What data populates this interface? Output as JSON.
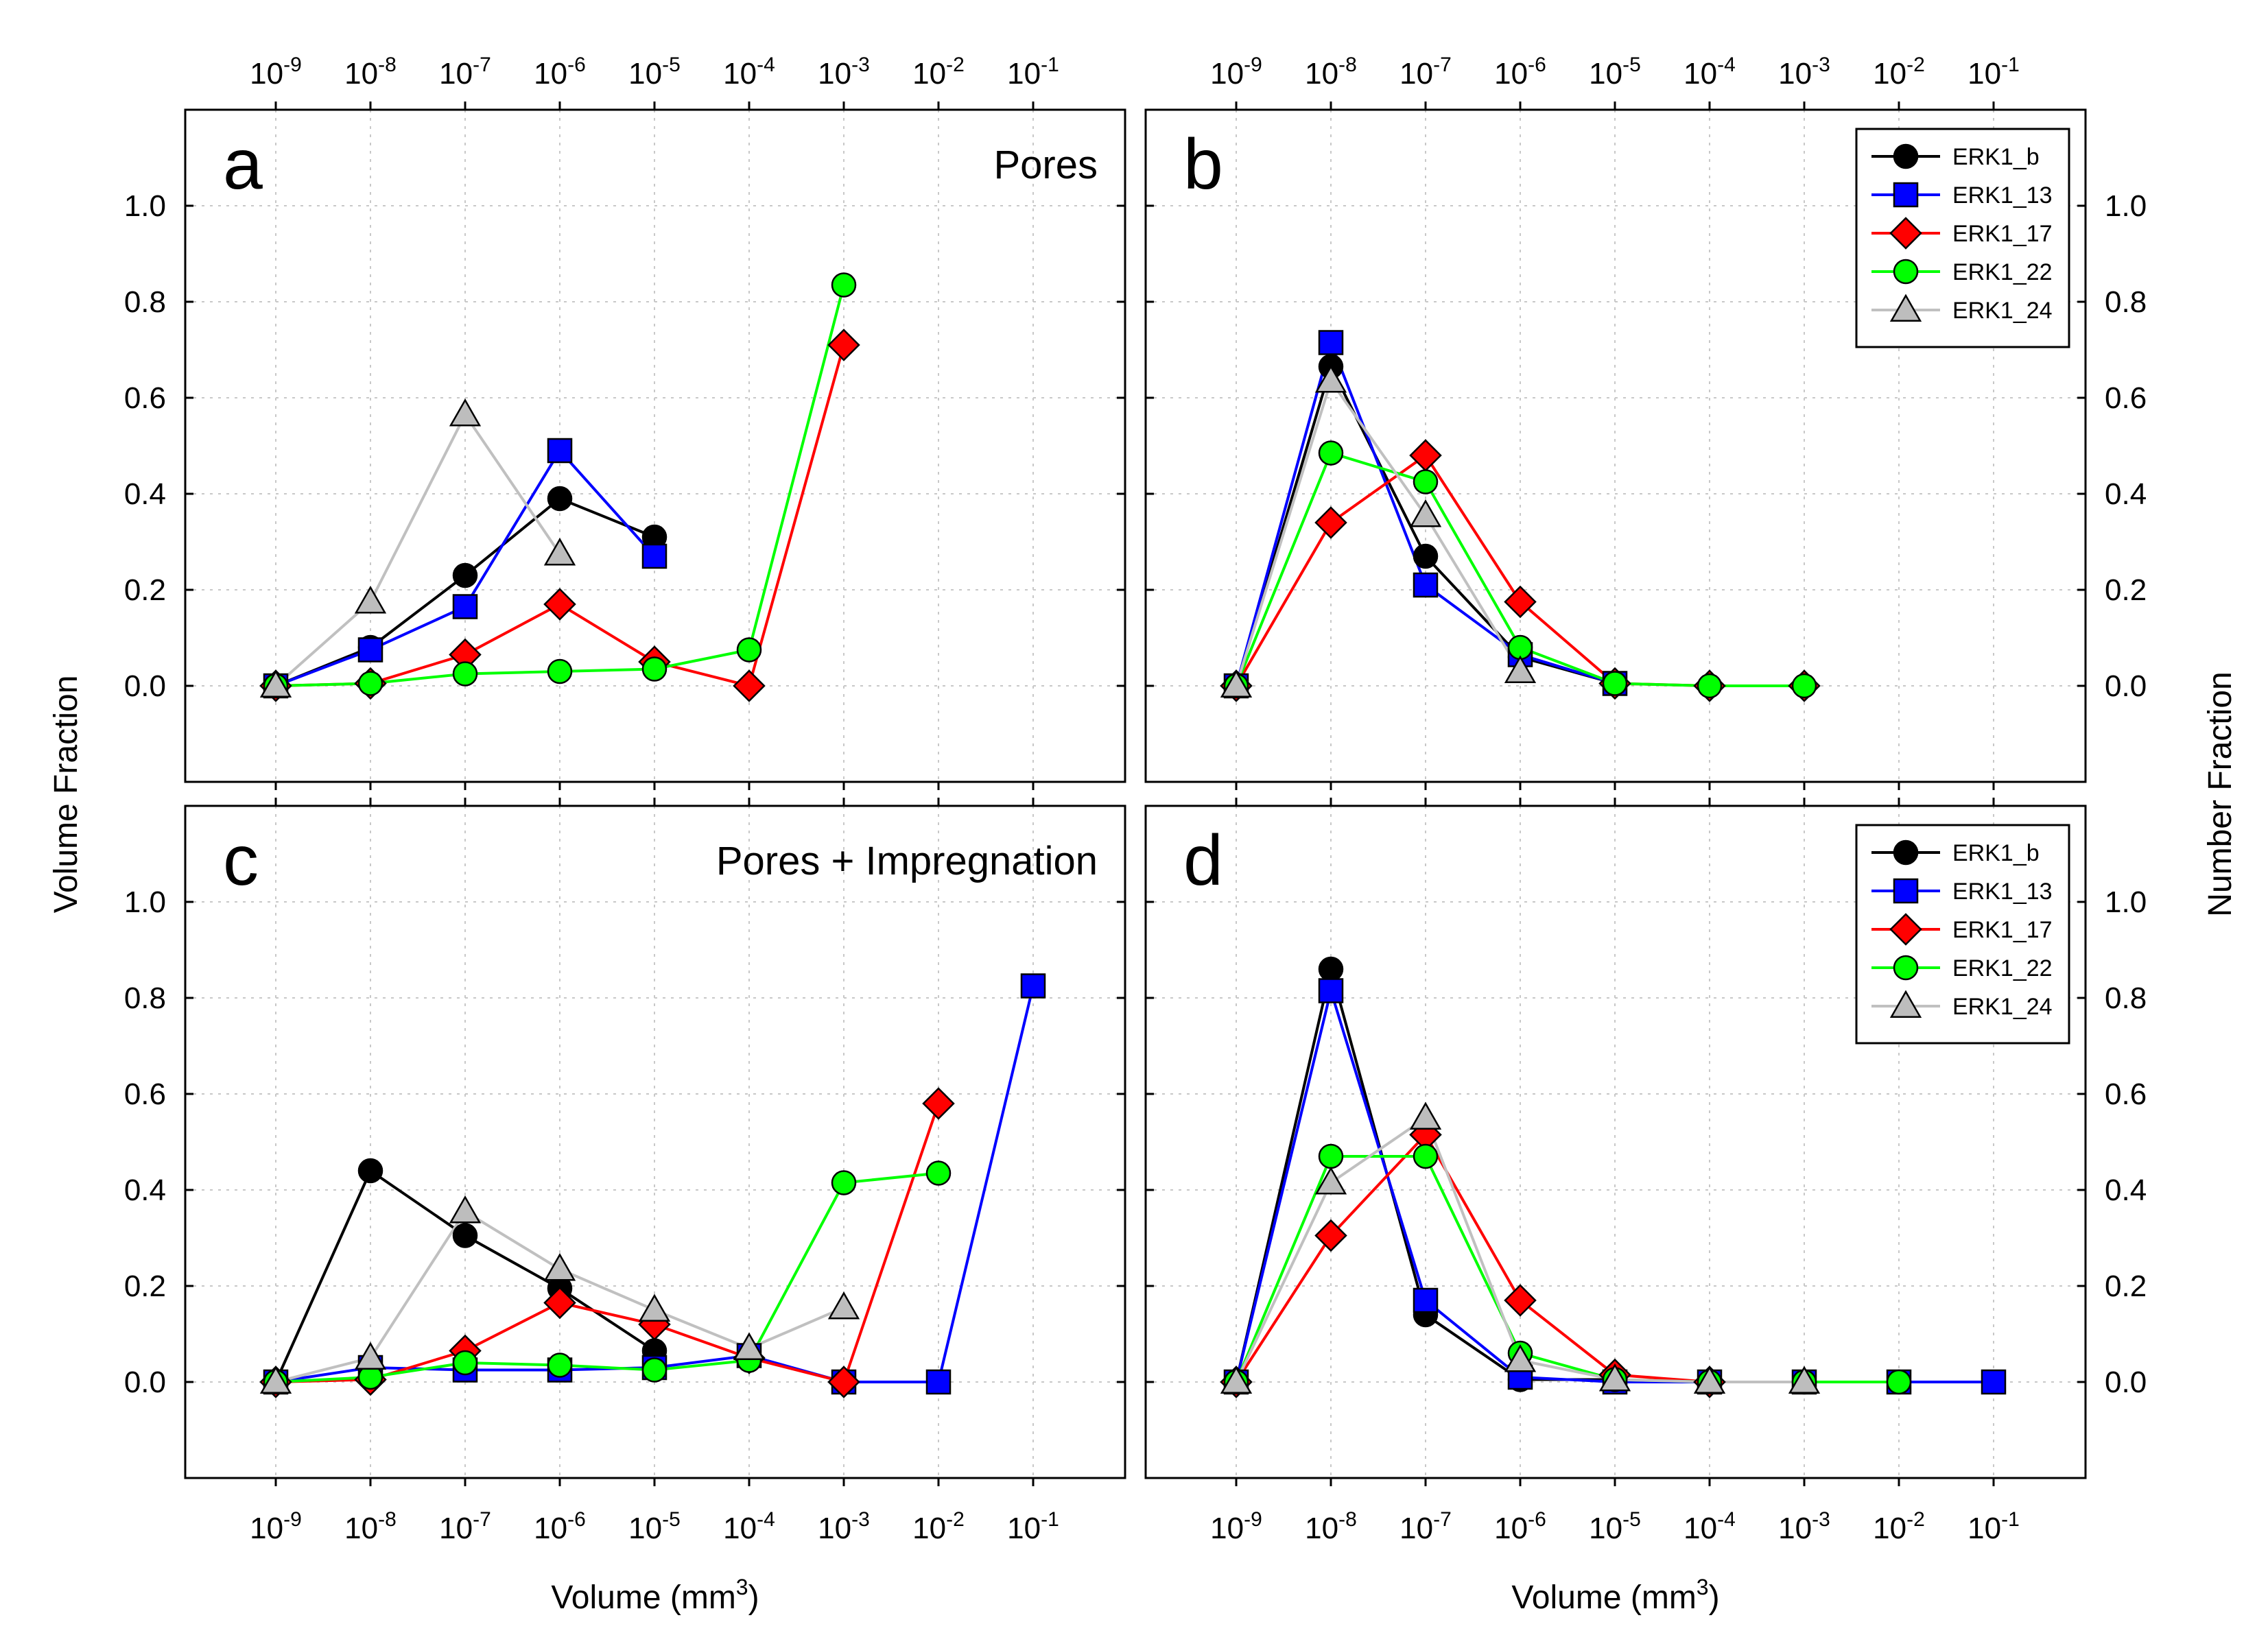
{
  "colors": {
    "ERK1_b": "#000000",
    "ERK1_13": "#0000ff",
    "ERK1_17": "#ff0000",
    "ERK1_22": "#00ff00",
    "ERK1_24_line": "#c0c0c0",
    "ERK1_24_fill": "#bdbdbd",
    "grid": "#c8c8c8"
  },
  "labels": {
    "y_left": "Volume Fraction",
    "y_right": "Number Fraction",
    "x_bottom_left": "Volume (mm",
    "x_bottom_right": "Volume (mm",
    "x_unit_exp": "3",
    "x_unit_close": ")"
  },
  "x_ticks": [
    {
      "base": "10",
      "exp": "-9",
      "log": -9
    },
    {
      "base": "10",
      "exp": "-8",
      "log": -8
    },
    {
      "base": "10",
      "exp": "-7",
      "log": -7
    },
    {
      "base": "10",
      "exp": "-6",
      "log": -6
    },
    {
      "base": "10",
      "exp": "-5",
      "log": -5
    },
    {
      "base": "10",
      "exp": "-4",
      "log": -4
    },
    {
      "base": "10",
      "exp": "-3",
      "log": -3
    },
    {
      "base": "10",
      "exp": "-2",
      "log": -2
    },
    {
      "base": "10",
      "exp": "-1",
      "log": -1
    }
  ],
  "y_ticks": [
    "0.0",
    "0.2",
    "0.4",
    "0.6",
    "0.8",
    "1.0"
  ],
  "y_tick_values": [
    0,
    0.2,
    0.4,
    0.6,
    0.8,
    1.0
  ],
  "chart_data": [
    {
      "panel": "a",
      "subtitle": "Pores",
      "type": "line",
      "x_scale": "log10",
      "xlim_log": [
        -10,
        -0.1
      ],
      "ylim": [
        -0.2,
        1.2
      ],
      "ylabel": "Volume Fraction",
      "legend": false,
      "series": [
        {
          "name": "ERK1_b",
          "marker": "circle",
          "x_log": [
            -9,
            -8,
            -7,
            -6,
            -5
          ],
          "values": [
            0.0,
            0.08,
            0.23,
            0.39,
            0.31
          ]
        },
        {
          "name": "ERK1_13",
          "marker": "square",
          "x_log": [
            -9,
            -8,
            -7,
            -6,
            -5
          ],
          "values": [
            0.0,
            0.075,
            0.165,
            0.49,
            0.27
          ]
        },
        {
          "name": "ERK1_17",
          "marker": "diamond",
          "x_log": [
            -9,
            -8,
            -7,
            -6,
            -5,
            -4,
            -3
          ],
          "values": [
            0.0,
            0.005,
            0.065,
            0.17,
            0.05,
            0.0,
            0.71
          ]
        },
        {
          "name": "ERK1_22",
          "marker": "circle",
          "x_log": [
            -9,
            -8,
            -7,
            -6,
            -5,
            -4,
            -3
          ],
          "values": [
            0.0,
            0.005,
            0.025,
            0.03,
            0.035,
            0.075,
            0.835
          ]
        },
        {
          "name": "ERK1_24",
          "marker": "triangle",
          "x_log": [
            -9,
            -8,
            -7,
            -6
          ],
          "values": [
            0.0,
            0.175,
            0.565,
            0.275
          ]
        }
      ]
    },
    {
      "panel": "b",
      "subtitle": "",
      "type": "line",
      "x_scale": "log10",
      "xlim_log": [
        -10,
        -0.1
      ],
      "ylim": [
        -0.2,
        1.2
      ],
      "ylabel": "Number Fraction",
      "legend": true,
      "legend_position": "top-right",
      "series": [
        {
          "name": "ERK1_b",
          "marker": "circle",
          "x_log": [
            -9,
            -8,
            -7,
            -6,
            -5
          ],
          "values": [
            0.0,
            0.665,
            0.27,
            0.06,
            0.005
          ]
        },
        {
          "name": "ERK1_13",
          "marker": "square",
          "x_log": [
            -9,
            -8,
            -7,
            -6,
            -5
          ],
          "values": [
            0.0,
            0.715,
            0.21,
            0.065,
            0.005
          ]
        },
        {
          "name": "ERK1_17",
          "marker": "diamond",
          "x_log": [
            -9,
            -8,
            -7,
            -6,
            -5,
            -4,
            -3
          ],
          "values": [
            0.0,
            0.34,
            0.48,
            0.175,
            0.005,
            0.0,
            0.0
          ]
        },
        {
          "name": "ERK1_22",
          "marker": "circle",
          "x_log": [
            -9,
            -8,
            -7,
            -6,
            -5,
            -4,
            -3
          ],
          "values": [
            0.0,
            0.485,
            0.425,
            0.08,
            0.005,
            0.0,
            0.0
          ]
        },
        {
          "name": "ERK1_24",
          "marker": "triangle",
          "x_log": [
            -9,
            -8,
            -7,
            -6
          ],
          "values": [
            0.0,
            0.635,
            0.355,
            0.03
          ]
        }
      ]
    },
    {
      "panel": "c",
      "subtitle": "Pores + Impregnation",
      "type": "line",
      "x_scale": "log10",
      "xlim_log": [
        -10,
        -0.1
      ],
      "ylim": [
        -0.2,
        1.2
      ],
      "ylabel": "Volume Fraction",
      "xlabel": "Volume (mm3)",
      "legend": false,
      "series": [
        {
          "name": "ERK1_b",
          "marker": "circle",
          "x_log": [
            -9,
            -8,
            -7,
            -6,
            -5
          ],
          "values": [
            0.0,
            0.44,
            0.305,
            0.195,
            0.065
          ]
        },
        {
          "name": "ERK1_13",
          "marker": "square",
          "x_log": [
            -9,
            -8,
            -7,
            -6,
            -5,
            -4,
            -3,
            -2,
            -1
          ],
          "values": [
            0.0,
            0.03,
            0.025,
            0.025,
            0.03,
            0.055,
            0.0,
            0.0,
            0.825
          ]
        },
        {
          "name": "ERK1_17",
          "marker": "diamond",
          "x_log": [
            -9,
            -8,
            -7,
            -6,
            -5,
            -4,
            -3,
            -2
          ],
          "values": [
            0.0,
            0.005,
            0.065,
            0.165,
            0.12,
            0.05,
            0.0,
            0.58
          ]
        },
        {
          "name": "ERK1_22",
          "marker": "circle",
          "x_log": [
            -9,
            -8,
            -7,
            -6,
            -5,
            -4,
            -3,
            -2
          ],
          "values": [
            0.0,
            0.01,
            0.04,
            0.035,
            0.025,
            0.045,
            0.415,
            0.435
          ]
        },
        {
          "name": "ERK1_24",
          "marker": "triangle",
          "x_log": [
            -9,
            -8,
            -7,
            -6,
            -5,
            -4,
            -3
          ],
          "values": [
            0.0,
            0.05,
            0.355,
            0.235,
            0.15,
            0.07,
            0.155
          ]
        }
      ]
    },
    {
      "panel": "d",
      "subtitle": "",
      "type": "line",
      "x_scale": "log10",
      "xlim_log": [
        -10,
        -0.1
      ],
      "ylim": [
        -0.2,
        1.2
      ],
      "ylabel": "Number Fraction",
      "xlabel": "Volume (mm3)",
      "legend": true,
      "legend_position": "top-right",
      "series": [
        {
          "name": "ERK1_b",
          "marker": "circle",
          "x_log": [
            -9,
            -8,
            -7,
            -6,
            -5
          ],
          "values": [
            0.0,
            0.86,
            0.14,
            0.005,
            0.005
          ]
        },
        {
          "name": "ERK1_13",
          "marker": "square",
          "x_log": [
            -9,
            -8,
            -7,
            -6,
            -5,
            -4,
            -3,
            -2,
            -1
          ],
          "values": [
            0.0,
            0.815,
            0.17,
            0.01,
            0.0,
            0.0,
            0.0,
            0.0,
            0.0
          ]
        },
        {
          "name": "ERK1_17",
          "marker": "diamond",
          "x_log": [
            -9,
            -8,
            -7,
            -6,
            -5,
            -4
          ],
          "values": [
            0.0,
            0.305,
            0.515,
            0.17,
            0.015,
            0.0
          ]
        },
        {
          "name": "ERK1_22",
          "marker": "circle",
          "x_log": [
            -9,
            -8,
            -7,
            -6,
            -5,
            -4,
            -3,
            -2
          ],
          "values": [
            0.0,
            0.47,
            0.47,
            0.06,
            0.005,
            0.0,
            0.0,
            0.0
          ]
        },
        {
          "name": "ERK1_24",
          "marker": "triangle",
          "x_log": [
            -9,
            -8,
            -7,
            -6,
            -5,
            -4,
            -3
          ],
          "values": [
            0.0,
            0.415,
            0.55,
            0.045,
            0.005,
            0.0,
            0.0
          ]
        }
      ]
    }
  ],
  "legend_entries": [
    "ERK1_b",
    "ERK1_13",
    "ERK1_17",
    "ERK1_22",
    "ERK1_24"
  ]
}
